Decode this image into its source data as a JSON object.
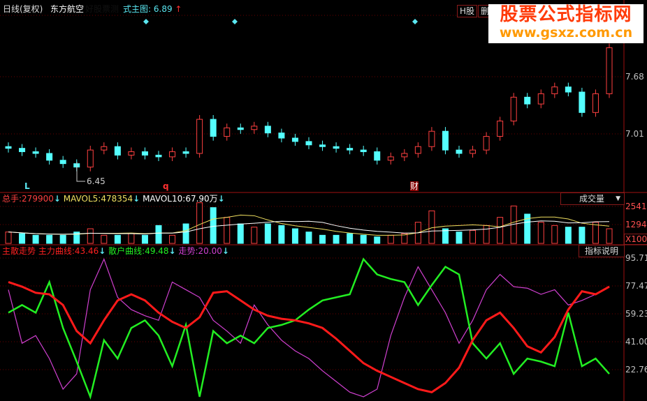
{
  "header": {
    "period": "日线(复权)",
    "stock_name": "东方航空",
    "hidden_label": "好股票测",
    "main_formula_label": "式主图:",
    "main_formula_value": "6.89",
    "h_share_button": "H股",
    "delete_button": "删"
  },
  "watermark": {
    "title": "股票公式指标网",
    "url": "www.gsxz.com.cn"
  },
  "price_panel": {
    "axis_ticks": [
      "7.68",
      "7.01"
    ],
    "low_marker": "6.45",
    "markers": {
      "L": "L",
      "q": "q",
      "cai": "财"
    }
  },
  "volume_panel": {
    "total_label": "总手:",
    "total_value": "279900",
    "mavol5_label": "MAVOL5:",
    "mavol5_value": "478354",
    "mavol10_label": "MAVOL10:",
    "mavol10_value": "67.90万",
    "selector": "成交量",
    "axis_ticks": [
      "2541",
      "1294"
    ],
    "unit": "X100"
  },
  "osc_panel": {
    "name": "主散走势",
    "main_label": "主力曲线:",
    "main_value": "43.46",
    "retail_label": "散户曲线:",
    "retail_value": "49.48",
    "trend_label": "走势:",
    "trend_value": "20.00",
    "help_button": "指标说明",
    "axis_ticks": [
      "95.71",
      "77.47",
      "59.23",
      "41.00",
      "22.76"
    ]
  },
  "colors": {
    "up": "#ff4040",
    "down": "#54ffff",
    "main": "#ff1a1a",
    "retail": "#22ee22",
    "trend": "#d040d0",
    "grid": "#6a0000"
  },
  "chart_data": [
    {
      "type": "candlestick",
      "ylim": [
        6.33,
        8.58
      ],
      "close": [
        6.84,
        6.8,
        6.78,
        6.7,
        6.66,
        6.62,
        6.82,
        6.86,
        6.76,
        6.8,
        6.76,
        6.74,
        6.8,
        6.78,
        7.18,
        6.98,
        7.08,
        7.06,
        7.1,
        7.02,
        6.96,
        6.92,
        6.88,
        6.86,
        6.84,
        6.82,
        6.8,
        6.7,
        6.74,
        6.78,
        6.86,
        7.04,
        6.82,
        6.78,
        6.82,
        6.98,
        7.16,
        7.44,
        7.36,
        7.48,
        7.56,
        7.5,
        7.26,
        7.48,
        8.02
      ]
    },
    {
      "type": "bar",
      "ylim": [
        0,
        3000
      ],
      "values": [
        700,
        600,
        500,
        500,
        500,
        700,
        900,
        500,
        500,
        600,
        500,
        1100,
        500,
        1200,
        2500,
        2200,
        1600,
        1200,
        1000,
        1200,
        1100,
        900,
        700,
        500,
        500,
        600,
        500,
        400,
        500,
        600,
        1300,
        2000,
        900,
        700,
        800,
        1100,
        1600,
        2300,
        1800,
        1300,
        1100,
        1000,
        1000,
        1300,
        900
      ]
    },
    {
      "type": "line",
      "ylim": [
        5,
        105
      ],
      "series": [
        {
          "name": "主力曲线",
          "values": [
            80,
            77,
            73,
            72,
            65,
            48,
            40,
            55,
            68,
            72,
            68,
            60,
            54,
            50,
            57,
            73,
            74,
            68,
            62,
            58,
            56,
            55,
            53,
            50,
            43,
            35,
            27,
            22,
            18,
            14,
            10,
            8,
            14,
            24,
            42,
            55,
            60,
            50,
            38,
            34,
            44,
            62,
            74,
            72,
            77
          ]
        },
        {
          "name": "散户曲线",
          "values": [
            60,
            65,
            60,
            80,
            50,
            28,
            5,
            42,
            30,
            50,
            55,
            45,
            25,
            52,
            5,
            48,
            40,
            45,
            40,
            50,
            52,
            55,
            62,
            68,
            70,
            72,
            95,
            85,
            82,
            80,
            65,
            78,
            90,
            85,
            40,
            30,
            40,
            20,
            30,
            28,
            25,
            60,
            25,
            30,
            20
          ]
        },
        {
          "name": "走势",
          "values": [
            75,
            40,
            45,
            30,
            10,
            20,
            75,
            95,
            70,
            62,
            58,
            55,
            80,
            75,
            70,
            55,
            48,
            40,
            65,
            52,
            42,
            35,
            30,
            22,
            15,
            8,
            5,
            10,
            45,
            70,
            90,
            75,
            60,
            40,
            55,
            75,
            85,
            77,
            76,
            72,
            75,
            65,
            68,
            72,
            77
          ]
        }
      ]
    }
  ]
}
